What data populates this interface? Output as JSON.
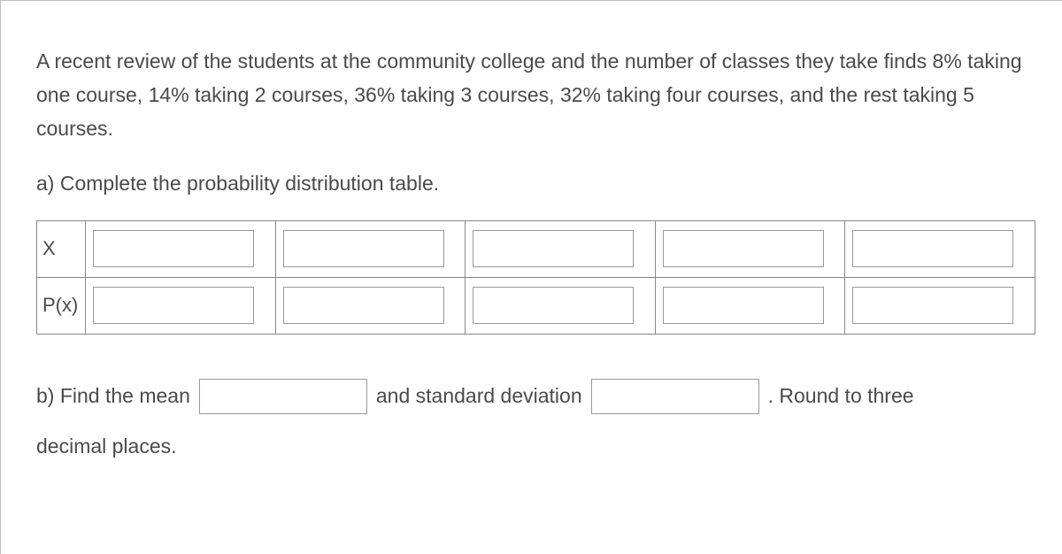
{
  "problem": {
    "intro": "A recent review of the students at the community college and the number of classes they take finds 8% taking one course, 14% taking 2 courses, 36% taking 3 courses, 32% taking four courses, and the rest taking 5 courses.",
    "part_a_prompt": "a) Complete the probability distribution table.",
    "table": {
      "row1_label": "X",
      "row2_label": "P(x)",
      "cells_x": [
        "",
        "",
        "",
        "",
        ""
      ],
      "cells_p": [
        "",
        "",
        "",
        "",
        ""
      ]
    },
    "part_b": {
      "prefix": "b) Find the mean",
      "mid": "and standard deviation",
      "suffix": ". Round to three",
      "line2": "decimal places.",
      "mean_value": "",
      "sd_value": ""
    }
  },
  "colors": {
    "text": "#4a4a4a",
    "border": "#888888",
    "input_border": "#999999",
    "background": "#ffffff"
  },
  "typography": {
    "body_fontsize": 23,
    "body_weight": 300
  }
}
